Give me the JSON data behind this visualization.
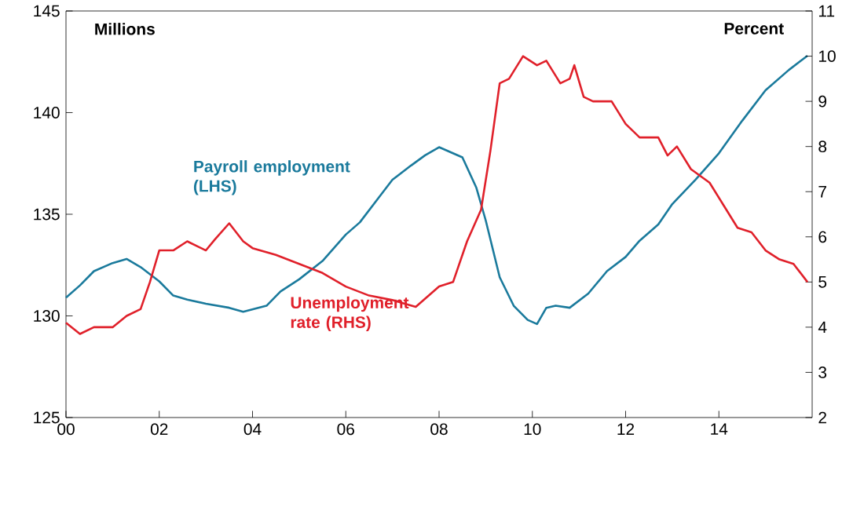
{
  "chart_data": {
    "type": "line",
    "ylabel": "Millions",
    "y2label": "Percent",
    "xlim": [
      2000,
      2016
    ],
    "xticks": [
      {
        "value": 2000,
        "label": "00"
      },
      {
        "value": 2002,
        "label": "02"
      },
      {
        "value": 2004,
        "label": "04"
      },
      {
        "value": 2006,
        "label": "06"
      },
      {
        "value": 2008,
        "label": "08"
      },
      {
        "value": 2010,
        "label": "10"
      },
      {
        "value": 2012,
        "label": "12"
      },
      {
        "value": 2014,
        "label": "14"
      }
    ],
    "ylim": [
      125,
      145
    ],
    "yticks": [
      125,
      130,
      135,
      140,
      145
    ],
    "y2lim": [
      2,
      11
    ],
    "y2ticks": [
      2,
      3,
      4,
      5,
      6,
      7,
      8,
      9,
      10,
      11
    ],
    "grid": false,
    "series": [
      {
        "name": "Payroll employment (LHS)",
        "color": "#1a7a9c",
        "x": [
          2000.0,
          2000.3,
          2000.6,
          2001.0,
          2001.3,
          2001.6,
          2002.0,
          2002.3,
          2002.6,
          2003.0,
          2003.5,
          2003.8,
          2004.3,
          2004.6,
          2005.0,
          2005.5,
          2006.0,
          2006.3,
          2006.7,
          2007.0,
          2007.4,
          2007.7,
          2008.0,
          2008.5,
          2008.8,
          2009.0,
          2009.3,
          2009.6,
          2009.9,
          2010.1,
          2010.3,
          2010.5,
          2010.8,
          2011.2,
          2011.6,
          2012.0,
          2012.3,
          2012.7,
          2013.0,
          2013.5,
          2014.0,
          2014.5,
          2015.0,
          2015.5,
          2015.9
        ],
        "values": [
          130.9,
          131.5,
          132.2,
          132.6,
          132.8,
          132.4,
          131.7,
          131.0,
          130.8,
          130.6,
          130.4,
          130.2,
          130.5,
          131.2,
          131.8,
          132.7,
          134.0,
          134.6,
          135.8,
          136.7,
          137.4,
          137.9,
          138.3,
          137.8,
          136.3,
          134.7,
          131.9,
          130.5,
          129.8,
          129.6,
          130.4,
          130.5,
          130.4,
          131.1,
          132.2,
          132.9,
          133.7,
          134.5,
          135.5,
          136.7,
          138.0,
          139.6,
          141.1,
          142.1,
          142.8
        ]
      },
      {
        "name": "Unemployment rate (RHS)",
        "color": "#e0202a",
        "axis": "y2",
        "x": [
          2000.0,
          2000.3,
          2000.6,
          2001.0,
          2001.3,
          2001.6,
          2001.8,
          2002.0,
          2002.3,
          2002.6,
          2003.0,
          2003.2,
          2003.5,
          2003.8,
          2004.0,
          2004.5,
          2005.0,
          2005.5,
          2006.0,
          2006.5,
          2007.0,
          2007.5,
          2008.0,
          2008.3,
          2008.6,
          2008.9,
          2009.1,
          2009.3,
          2009.5,
          2009.8,
          2010.1,
          2010.3,
          2010.6,
          2010.8,
          2010.9,
          2011.1,
          2011.3,
          2011.7,
          2012.0,
          2012.3,
          2012.7,
          2012.9,
          2013.1,
          2013.4,
          2013.8,
          2014.1,
          2014.4,
          2014.7,
          2015.0,
          2015.3,
          2015.6,
          2015.9
        ],
        "values": [
          4.1,
          3.85,
          4.0,
          4.0,
          4.25,
          4.4,
          5.0,
          5.7,
          5.7,
          5.9,
          5.7,
          5.95,
          6.3,
          5.9,
          5.75,
          5.6,
          5.4,
          5.2,
          4.9,
          4.7,
          4.6,
          4.45,
          4.9,
          5.0,
          5.9,
          6.6,
          7.9,
          9.4,
          9.5,
          10.0,
          9.8,
          9.9,
          9.4,
          9.5,
          9.8,
          9.1,
          9.0,
          9.0,
          8.5,
          8.2,
          8.2,
          7.8,
          8.0,
          7.5,
          7.2,
          6.7,
          6.2,
          6.1,
          5.7,
          5.5,
          5.4,
          5.0
        ]
      }
    ]
  }
}
